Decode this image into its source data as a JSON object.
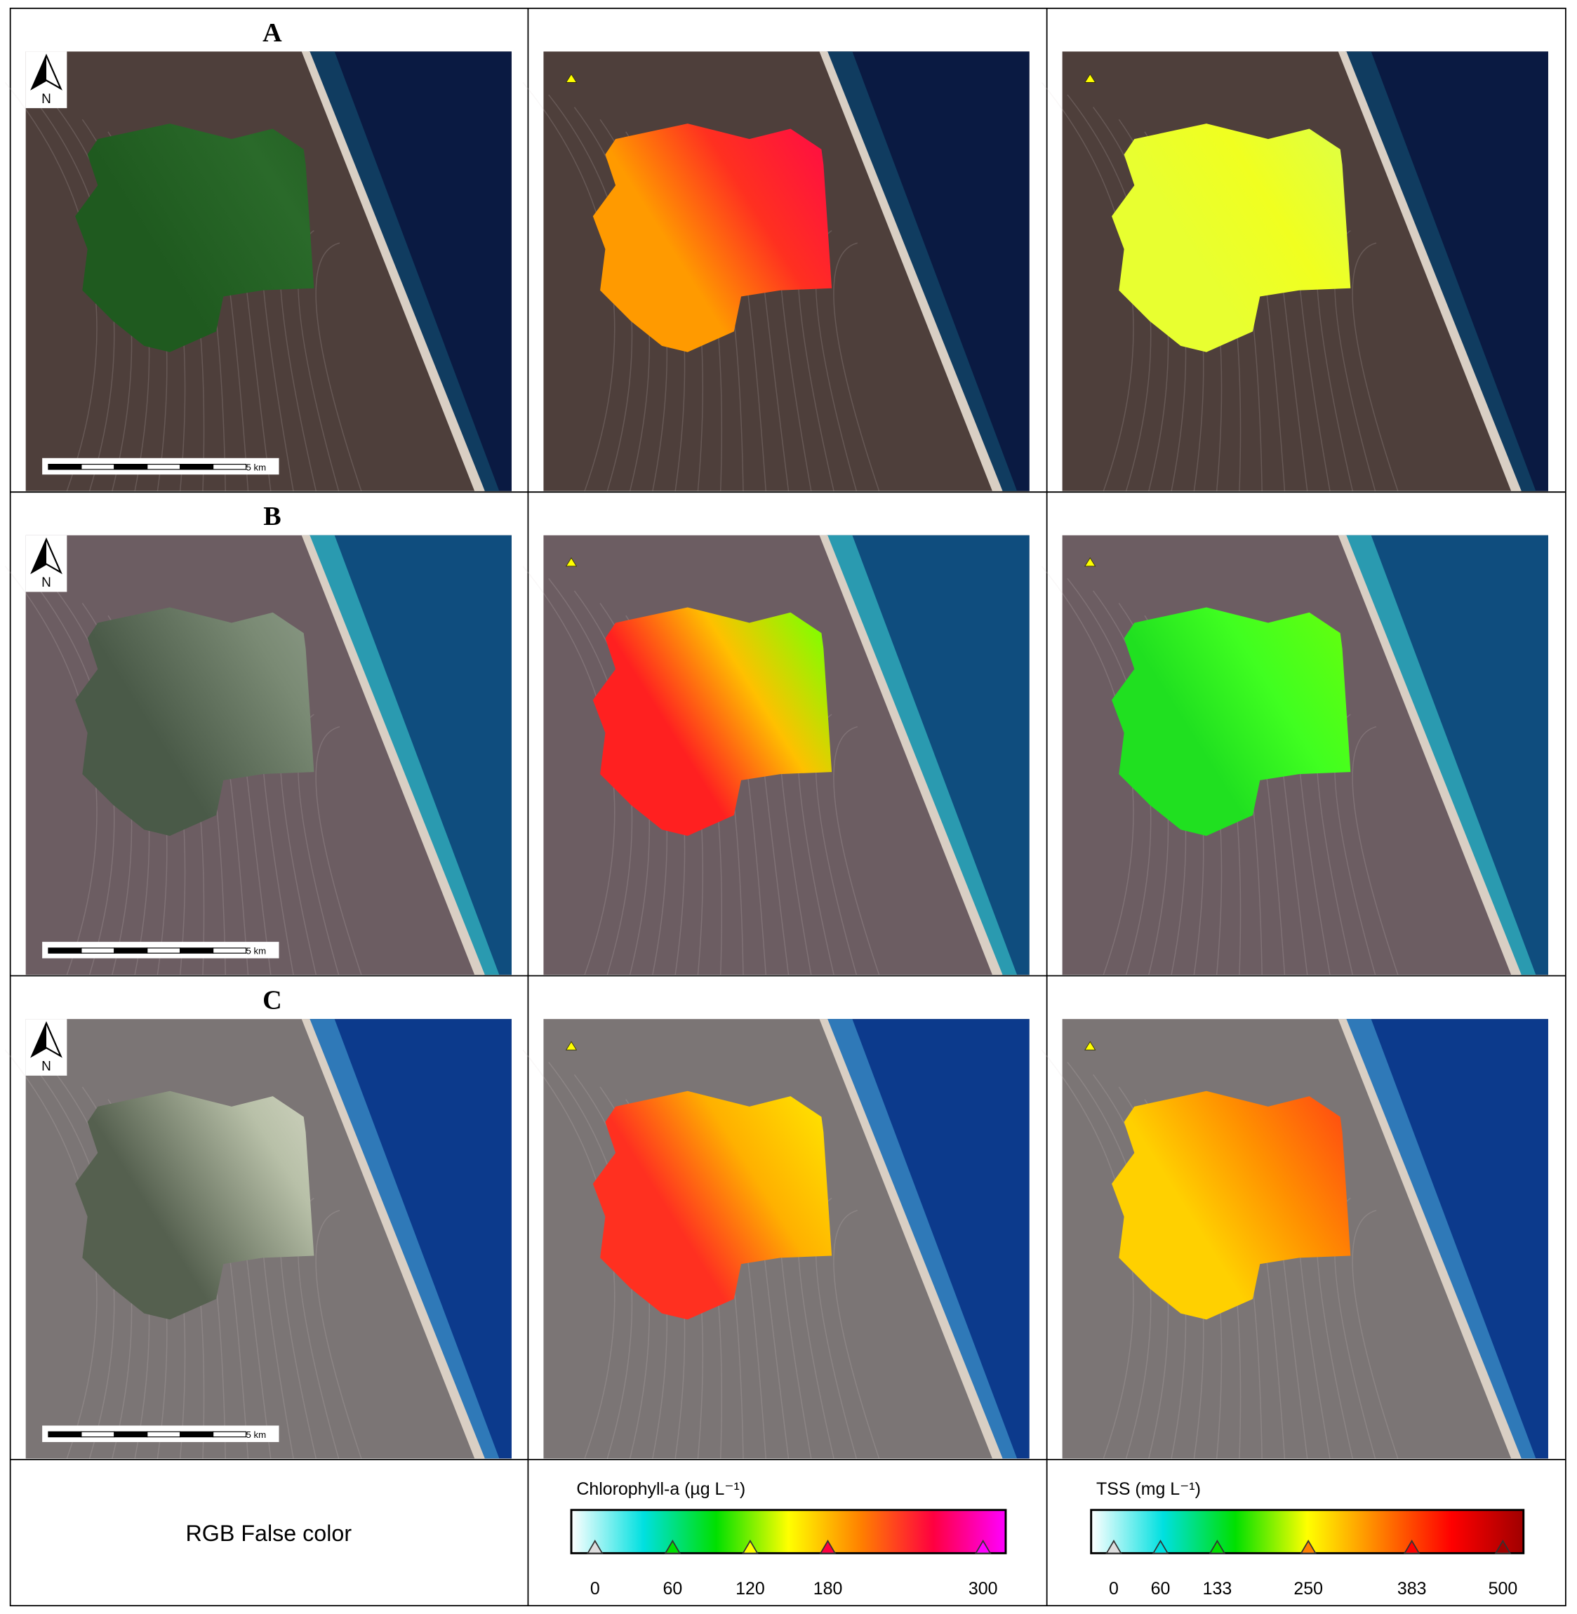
{
  "panels": [
    {
      "label": "A"
    },
    {
      "label": "B"
    },
    {
      "label": "C"
    }
  ],
  "north_arrow": "N",
  "scale_bar": "5 km",
  "legend": {
    "rgb": "RGB False color",
    "chlorophyll": {
      "title": "Chlorophyll-a (µg L⁻¹)",
      "ticks": [
        0,
        60,
        120,
        180,
        300
      ],
      "colors": [
        "#ffffff",
        "#00e0e0",
        "#00e000",
        "#ffff00",
        "#ff8000",
        "#ff0040",
        "#ff00ff"
      ]
    },
    "tss": {
      "title": "TSS (mg L⁻¹)",
      "ticks": [
        0,
        60,
        133,
        250,
        383,
        500
      ],
      "colors": [
        "#ffffff",
        "#00e0e0",
        "#00e000",
        "#ffff00",
        "#ff8000",
        "#ff0000",
        "#a00000"
      ]
    }
  }
}
